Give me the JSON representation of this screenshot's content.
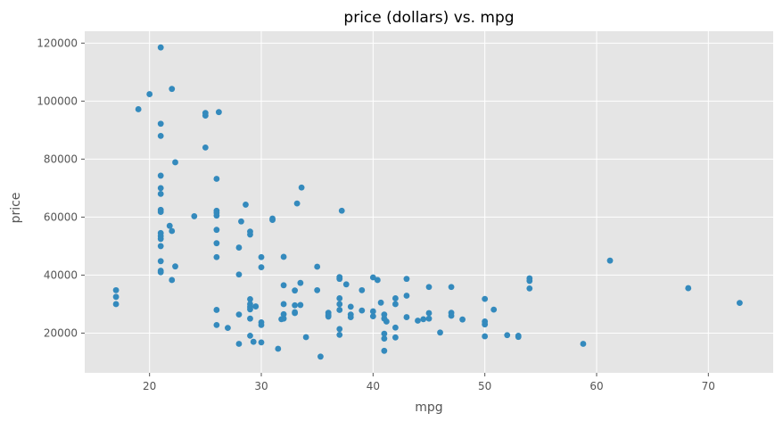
{
  "chart_data": {
    "type": "scatter",
    "title": "price (dollars) vs. mpg",
    "xlabel": "mpg",
    "ylabel": "price",
    "xlim": [
      14.2,
      75.8
    ],
    "ylim": [
      6300,
      124100
    ],
    "xticks": [
      20,
      30,
      40,
      50,
      60,
      70
    ],
    "yticks": [
      20000,
      40000,
      60000,
      80000,
      100000,
      120000
    ],
    "grid": true,
    "legend": "none",
    "colors": {
      "background": "#e5e5e5",
      "grid": "#ffffff",
      "marker": "#348abd",
      "tick": "#555555"
    },
    "points": [
      [
        17,
        34800
      ],
      [
        17,
        32500
      ],
      [
        17,
        30000
      ],
      [
        19,
        97200
      ],
      [
        20,
        102400
      ],
      [
        21,
        118500
      ],
      [
        21,
        92200
      ],
      [
        21,
        88000
      ],
      [
        21,
        74300
      ],
      [
        21,
        70000
      ],
      [
        21,
        68000
      ],
      [
        21,
        62500
      ],
      [
        21,
        61800
      ],
      [
        21,
        54500
      ],
      [
        21,
        53500
      ],
      [
        21,
        52500
      ],
      [
        21,
        50000
      ],
      [
        21,
        44800
      ],
      [
        21,
        41500
      ],
      [
        21,
        41000
      ],
      [
        22,
        104200
      ],
      [
        21.8,
        57000
      ],
      [
        22,
        55200
      ],
      [
        22,
        38300
      ],
      [
        22.3,
        78900
      ],
      [
        22.3,
        43000
      ],
      [
        24,
        60300
      ],
      [
        25,
        95900
      ],
      [
        25,
        95000
      ],
      [
        25,
        84000
      ],
      [
        26,
        73200
      ],
      [
        26,
        62200
      ],
      [
        26,
        61500
      ],
      [
        26,
        60500
      ],
      [
        26,
        55600
      ],
      [
        26,
        51000
      ],
      [
        26,
        46200
      ],
      [
        26,
        28000
      ],
      [
        26,
        22800
      ],
      [
        26.2,
        96200
      ],
      [
        27,
        21800
      ],
      [
        28,
        49500
      ],
      [
        28,
        40200
      ],
      [
        28,
        26400
      ],
      [
        28,
        16300
      ],
      [
        28.2,
        58500
      ],
      [
        28.6,
        64300
      ],
      [
        29,
        55000
      ],
      [
        29,
        54000
      ],
      [
        29,
        31700
      ],
      [
        29,
        30000
      ],
      [
        29,
        29000
      ],
      [
        29,
        28200
      ],
      [
        29,
        25000
      ],
      [
        29,
        19100
      ],
      [
        29.3,
        17000
      ],
      [
        29.5,
        29200
      ],
      [
        30,
        46200
      ],
      [
        30,
        42700
      ],
      [
        30,
        23700
      ],
      [
        30,
        22800
      ],
      [
        30,
        16800
      ],
      [
        31,
        59500
      ],
      [
        31,
        59000
      ],
      [
        31.5,
        14600
      ],
      [
        32,
        46300
      ],
      [
        32,
        36500
      ],
      [
        32,
        30000
      ],
      [
        32,
        26500
      ],
      [
        32,
        25000
      ],
      [
        31.8,
        24800
      ],
      [
        33,
        34700
      ],
      [
        33,
        29600
      ],
      [
        33,
        27200
      ],
      [
        33,
        26900
      ],
      [
        33.2,
        64700
      ],
      [
        33.6,
        70200
      ],
      [
        33.5,
        37300
      ],
      [
        33.5,
        29700
      ],
      [
        34,
        18600
      ],
      [
        35,
        42900
      ],
      [
        35,
        34800
      ],
      [
        35.3,
        11900
      ],
      [
        36,
        27000
      ],
      [
        36,
        26200
      ],
      [
        36,
        25700
      ],
      [
        37,
        39300
      ],
      [
        37,
        38700
      ],
      [
        37,
        32000
      ],
      [
        37,
        30000
      ],
      [
        37,
        28000
      ],
      [
        37,
        21400
      ],
      [
        37,
        19400
      ],
      [
        37.2,
        62200
      ],
      [
        37.6,
        36800
      ],
      [
        38,
        29100
      ],
      [
        38,
        26400
      ],
      [
        38,
        25500
      ],
      [
        39,
        34800
      ],
      [
        39,
        27800
      ],
      [
        40,
        39200
      ],
      [
        40,
        27500
      ],
      [
        40,
        25800
      ],
      [
        40.4,
        38300
      ],
      [
        40.7,
        30500
      ],
      [
        41,
        26400
      ],
      [
        41,
        25000
      ],
      [
        41,
        19800
      ],
      [
        41,
        18100
      ],
      [
        41,
        13900
      ],
      [
        41.2,
        24000
      ],
      [
        42,
        32000
      ],
      [
        42,
        30000
      ],
      [
        42,
        21900
      ],
      [
        42,
        18500
      ],
      [
        43,
        38700
      ],
      [
        43,
        32900
      ],
      [
        43,
        25500
      ],
      [
        44,
        24300
      ],
      [
        44.5,
        24800
      ],
      [
        45,
        35900
      ],
      [
        45,
        26900
      ],
      [
        45,
        25000
      ],
      [
        46,
        20200
      ],
      [
        47,
        35900
      ],
      [
        47,
        27000
      ],
      [
        47,
        26000
      ],
      [
        48,
        24700
      ],
      [
        50,
        31800
      ],
      [
        50,
        24000
      ],
      [
        50,
        23000
      ],
      [
        50,
        18900
      ],
      [
        50.8,
        28100
      ],
      [
        52,
        19300
      ],
      [
        53,
        19100
      ],
      [
        53,
        18700
      ],
      [
        54,
        38900
      ],
      [
        54,
        38000
      ],
      [
        54,
        35400
      ],
      [
        58.8,
        16300
      ],
      [
        61.2,
        45000
      ],
      [
        68.2,
        35500
      ],
      [
        72.8,
        30400
      ]
    ]
  }
}
